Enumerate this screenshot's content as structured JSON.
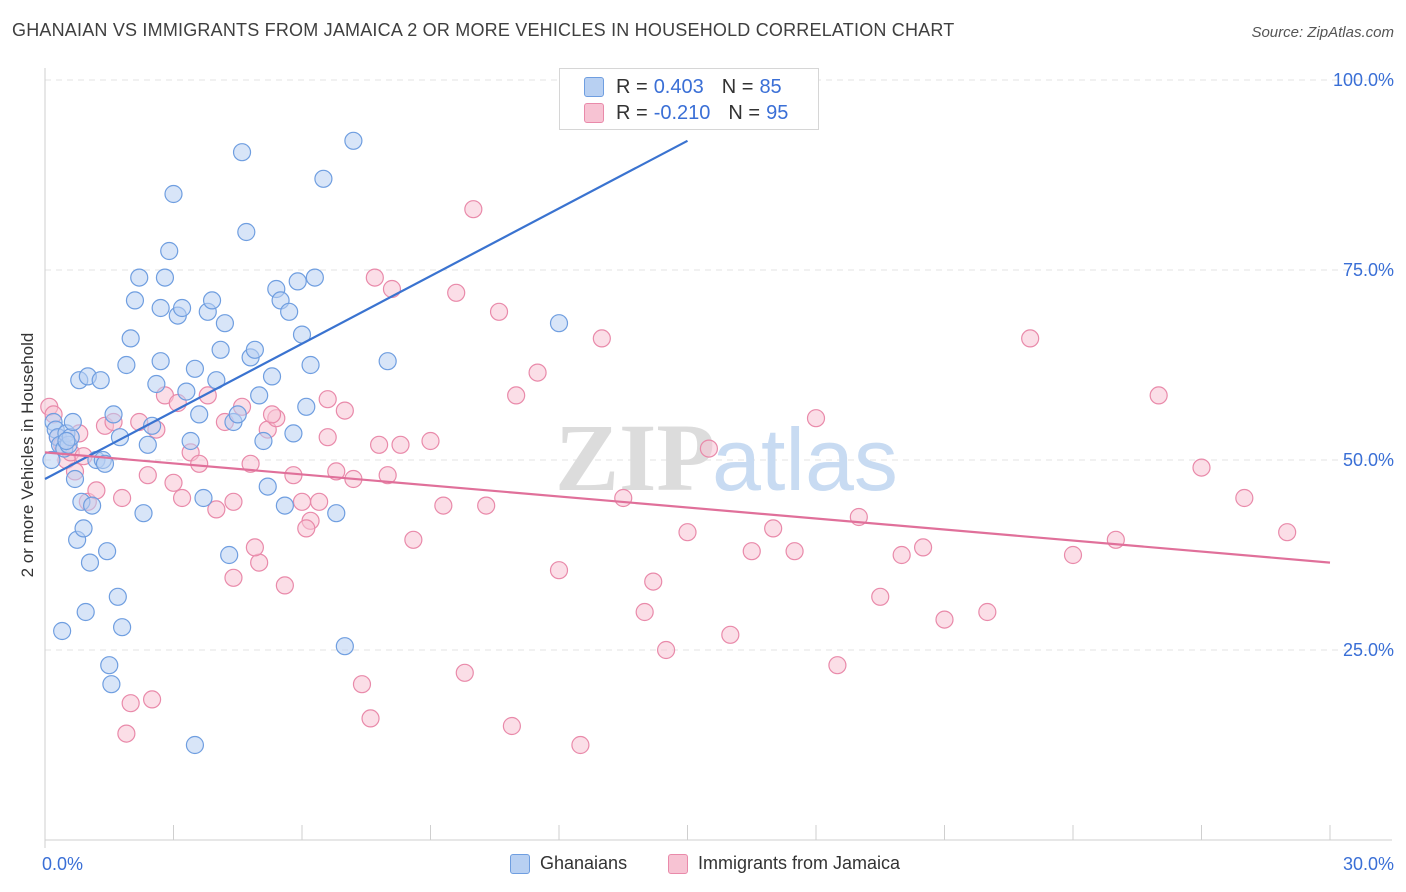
{
  "title": "GHANAIAN VS IMMIGRANTS FROM JAMAICA 2 OR MORE VEHICLES IN HOUSEHOLD CORRELATION CHART",
  "source": "Source: ZipAtlas.com",
  "watermark": {
    "zip": "ZIP",
    "atlas": "atlas"
  },
  "stats": [
    {
      "r_label": "R = ",
      "r_value": "0.403",
      "n_label": "N = ",
      "n_value": "85"
    },
    {
      "r_label": "R = ",
      "r_value": "-0.210",
      "n_label": "N = ",
      "n_value": "95"
    }
  ],
  "colors": {
    "blue_fill": "#b8d0f2",
    "blue_stroke": "#6f9ee0",
    "blue_line": "#3a73d0",
    "pink_fill": "#f7c3d3",
    "pink_stroke": "#e98aaa",
    "pink_line": "#e0709a",
    "axis_text": "#3a6fd6",
    "grid": "#e3e3e3"
  },
  "chart_data": {
    "type": "scatter",
    "xlabel": "",
    "ylabel": "2 or more Vehicles in Household",
    "xlim": [
      0,
      30
    ],
    "ylim": [
      0,
      105
    ],
    "x_tick_labels": [
      {
        "value": 0,
        "label": "0.0%"
      },
      {
        "value": 30,
        "label": "30.0%"
      }
    ],
    "y_tick_labels": [
      {
        "value": 25,
        "label": "25.0%"
      },
      {
        "value": 50,
        "label": "50.0%"
      },
      {
        "value": 75,
        "label": "75.0%"
      },
      {
        "value": 100,
        "label": "100.0%"
      }
    ],
    "grid": true,
    "legend_placement": "bottom",
    "series": [
      {
        "name": "Ghanaians",
        "color": "#6f9ee0",
        "trend": {
          "x0": 0,
          "y0": 47.5,
          "x1": 15.0,
          "y1": 92.0
        },
        "x": [
          0.15,
          0.2,
          0.25,
          0.3,
          0.35,
          0.4,
          0.45,
          0.5,
          0.55,
          0.6,
          0.65,
          0.7,
          0.75,
          0.8,
          0.85,
          0.9,
          0.95,
          1.0,
          1.05,
          1.1,
          1.2,
          1.3,
          1.35,
          1.4,
          1.45,
          1.5,
          1.55,
          1.6,
          1.7,
          1.75,
          1.8,
          1.9,
          2.0,
          2.1,
          2.2,
          2.3,
          2.4,
          2.5,
          2.6,
          2.7,
          2.8,
          2.9,
          3.0,
          3.1,
          3.2,
          3.3,
          3.4,
          3.5,
          3.6,
          3.7,
          3.8,
          3.9,
          4.0,
          4.1,
          4.2,
          4.3,
          4.4,
          4.5,
          4.6,
          4.7,
          4.8,
          4.9,
          5.0,
          5.1,
          5.2,
          5.3,
          5.4,
          5.5,
          5.6,
          5.7,
          5.8,
          5.9,
          6.0,
          6.1,
          6.2,
          6.3,
          6.5,
          6.8,
          7.0,
          7.2,
          8.0,
          12.0,
          0.5,
          2.7,
          3.5
        ],
        "y": [
          50.0,
          55.0,
          54.0,
          53.0,
          52.0,
          27.5,
          51.5,
          53.5,
          52.0,
          53.0,
          55.0,
          47.5,
          39.5,
          60.5,
          44.5,
          41.0,
          30.0,
          61.0,
          36.5,
          44.0,
          50.0,
          60.5,
          50.0,
          49.5,
          38.0,
          23.0,
          20.5,
          56.0,
          32.0,
          53.0,
          28.0,
          62.5,
          66.0,
          71.0,
          74.0,
          43.0,
          52.0,
          54.5,
          60.0,
          63.0,
          74.0,
          77.5,
          85.0,
          69.0,
          70.0,
          59.0,
          52.5,
          62.0,
          56.0,
          45.0,
          69.5,
          71.0,
          60.5,
          64.5,
          68.0,
          37.5,
          55.0,
          56.0,
          90.5,
          80.0,
          63.5,
          64.5,
          58.5,
          52.5,
          46.5,
          61.0,
          72.5,
          71.0,
          44.0,
          69.5,
          53.5,
          73.5,
          66.5,
          57.0,
          62.5,
          74.0,
          87.0,
          43.0,
          25.5,
          92.0,
          63.0,
          68.0,
          52.5,
          70.0,
          12.5
        ]
      },
      {
        "name": "Immigrants from Jamaica",
        "color": "#e98aaa",
        "trend": {
          "x0": 0,
          "y0": 51.0,
          "x1": 30.0,
          "y1": 36.5
        },
        "x": [
          0.1,
          0.2,
          0.3,
          0.4,
          0.5,
          0.6,
          0.7,
          0.8,
          0.9,
          1.0,
          1.2,
          1.4,
          1.6,
          1.8,
          2.0,
          2.2,
          2.4,
          2.6,
          2.8,
          3.0,
          3.2,
          3.4,
          3.6,
          3.8,
          4.0,
          4.2,
          4.4,
          4.6,
          4.8,
          5.0,
          5.2,
          5.4,
          5.6,
          5.8,
          6.0,
          6.2,
          6.4,
          6.6,
          6.8,
          7.0,
          7.2,
          7.4,
          7.6,
          7.8,
          8.0,
          8.3,
          8.6,
          9.0,
          9.3,
          9.6,
          10.0,
          10.3,
          10.6,
          11.0,
          11.5,
          12.0,
          12.5,
          13.0,
          13.5,
          14.0,
          14.5,
          15.0,
          15.5,
          16.0,
          16.5,
          17.0,
          17.5,
          18.0,
          18.5,
          19.0,
          19.5,
          20.0,
          20.5,
          21.0,
          22.0,
          23.0,
          24.0,
          25.0,
          26.0,
          27.0,
          28.0,
          29.0,
          3.1,
          4.4,
          5.3,
          6.1,
          7.7,
          8.1,
          9.8,
          10.9,
          1.9,
          2.5,
          4.9,
          6.6,
          14.2
        ],
        "y": [
          57.0,
          56.0,
          53.0,
          52.0,
          50.0,
          51.0,
          48.5,
          53.5,
          50.5,
          44.5,
          46.0,
          54.5,
          55.0,
          45.0,
          18.0,
          55.0,
          48.0,
          54.0,
          58.5,
          47.0,
          45.0,
          51.0,
          49.5,
          58.5,
          43.5,
          55.0,
          44.5,
          57.0,
          49.5,
          36.5,
          54.0,
          55.5,
          33.5,
          48.0,
          44.5,
          42.0,
          44.5,
          53.0,
          48.5,
          56.5,
          47.5,
          20.5,
          16.0,
          52.0,
          48.0,
          52.0,
          39.5,
          52.5,
          44.0,
          72.0,
          83.0,
          44.0,
          69.5,
          58.5,
          61.5,
          35.5,
          12.5,
          66.0,
          45.0,
          30.0,
          25.0,
          40.5,
          51.5,
          27.0,
          38.0,
          41.0,
          38.0,
          55.5,
          23.0,
          42.5,
          32.0,
          37.5,
          38.5,
          29.0,
          30.0,
          66.0,
          37.5,
          39.5,
          58.5,
          49.0,
          45.0,
          40.5,
          57.5,
          34.5,
          56.0,
          41.0,
          74.0,
          72.5,
          22.0,
          15.0,
          14.0,
          18.5,
          38.5,
          58.0,
          34.0
        ]
      }
    ]
  }
}
